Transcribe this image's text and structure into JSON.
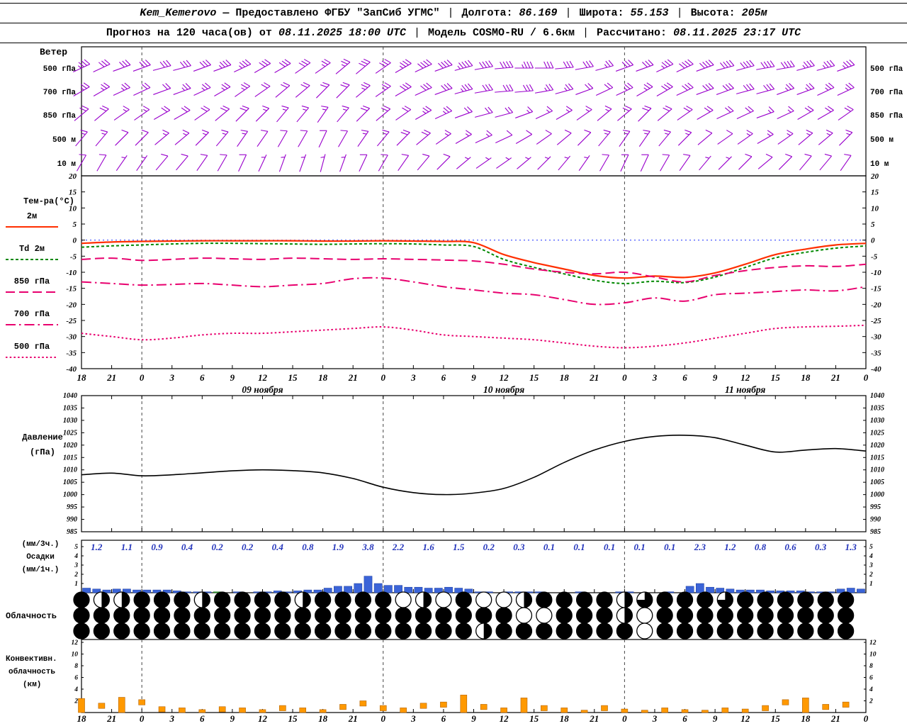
{
  "header": {
    "station": "Kem_Kemerovo",
    "provider": "— Предоставлено ФГБУ \"ЗапСиб УГМС\"",
    "sep": "|",
    "lon_label": "Долгота:",
    "lon": "86.169",
    "lat_label": "Широта:",
    "lat": "55.153",
    "alt_label": "Высота:",
    "alt": "205м",
    "forecast_prefix": "Прогноз на 120 часа(ов) от",
    "forecast_start": "08.11.2025 18:00 UTC",
    "model_label": "Модель",
    "model": "COSMO-RU / 6.6км",
    "calc_label": "Рассчитано:",
    "calc_time": "08.11.2025 23:17 UTC"
  },
  "labels": {
    "wind": "Ветер",
    "temp": "Тем-ра(°C)",
    "pressure1": "Давление",
    "pressure2": "(гПа)",
    "precip1": "(мм/3ч.)",
    "precip2": "Осадки",
    "precip3": "(мм/1ч.)",
    "cloud": "Облачность",
    "conv1": "Конвективн.",
    "conv2": "облачность",
    "conv3": "(км)"
  },
  "chart_data": {
    "type": "meteogram",
    "time": {
      "step_hours": 3,
      "span_hours": 78,
      "tick_labels": [
        "18",
        "21",
        "0",
        "3",
        "6",
        "9",
        "12",
        "15",
        "18",
        "21",
        "0",
        "3",
        "6",
        "9",
        "12",
        "15",
        "18",
        "21",
        "0",
        "3",
        "6",
        "9",
        "12",
        "15",
        "18",
        "21",
        "0"
      ],
      "date_labels": [
        {
          "text": "09 ноября",
          "hour": 18
        },
        {
          "text": "10 ноября",
          "hour": 42
        },
        {
          "text": "11 ноября",
          "hour": 66
        }
      ],
      "midnight_hours": [
        6,
        30,
        54
      ]
    },
    "wind": {
      "step_hours": 2,
      "levels": [
        {
          "name": "500 гПа",
          "speeds": [
            18,
            17,
            16,
            15,
            15,
            16,
            17,
            18,
            18,
            17,
            16,
            15,
            14,
            14,
            15,
            16,
            18,
            20,
            22,
            23,
            22,
            20,
            18,
            17,
            16,
            15,
            14,
            15,
            16,
            18,
            20,
            21,
            22,
            22,
            21,
            20,
            19,
            18,
            18
          ],
          "dirs": [
            245,
            245,
            250,
            250,
            255,
            255,
            250,
            250,
            245,
            240,
            240,
            235,
            235,
            230,
            230,
            235,
            240,
            245,
            250,
            255,
            260,
            265,
            270,
            270,
            265,
            260,
            255,
            250,
            250,
            245,
            245,
            250,
            255,
            255,
            260,
            260,
            255,
            255,
            250
          ]
        },
        {
          "name": "700 гПа",
          "speeds": [
            14,
            13,
            13,
            12,
            12,
            13,
            14,
            14,
            13,
            12,
            12,
            11,
            11,
            12,
            13,
            14,
            15,
            16,
            17,
            18,
            17,
            16,
            15,
            14,
            13,
            12,
            12,
            13,
            14,
            15,
            16,
            17,
            17,
            16,
            15,
            14,
            14,
            13,
            13
          ],
          "dirs": [
            240,
            240,
            245,
            245,
            250,
            250,
            245,
            240,
            235,
            235,
            230,
            230,
            225,
            225,
            230,
            235,
            240,
            245,
            250,
            255,
            260,
            265,
            265,
            260,
            255,
            250,
            245,
            245,
            240,
            240,
            245,
            250,
            250,
            255,
            255,
            250,
            250,
            245,
            245
          ]
        },
        {
          "name": "850 гПа",
          "speeds": [
            10,
            10,
            9,
            9,
            10,
            10,
            11,
            11,
            10,
            9,
            9,
            8,
            8,
            9,
            10,
            11,
            12,
            13,
            13,
            12,
            11,
            10,
            9,
            9,
            8,
            8,
            9,
            10,
            11,
            12,
            12,
            11,
            10,
            10,
            9,
            9,
            10,
            10,
            10
          ],
          "dirs": [
            230,
            230,
            235,
            235,
            240,
            240,
            235,
            230,
            225,
            225,
            220,
            220,
            215,
            220,
            225,
            230,
            235,
            240,
            245,
            250,
            255,
            255,
            250,
            245,
            240,
            235,
            230,
            230,
            225,
            230,
            235,
            240,
            245,
            245,
            250,
            245,
            240,
            240,
            235
          ]
        },
        {
          "name": "500 м",
          "speeds": [
            8,
            8,
            7,
            7,
            8,
            8,
            9,
            9,
            8,
            7,
            7,
            6,
            6,
            7,
            8,
            9,
            10,
            10,
            9,
            8,
            8,
            7,
            7,
            6,
            6,
            7,
            8,
            9,
            9,
            8,
            8,
            7,
            7,
            8,
            8,
            8,
            9,
            9,
            8
          ],
          "dirs": [
            220,
            220,
            225,
            225,
            230,
            230,
            225,
            220,
            215,
            215,
            210,
            210,
            205,
            210,
            215,
            220,
            225,
            230,
            235,
            240,
            245,
            245,
            240,
            235,
            230,
            225,
            220,
            215,
            215,
            220,
            225,
            230,
            235,
            235,
            240,
            235,
            230,
            230,
            225
          ]
        },
        {
          "name": "10 м",
          "speeds": [
            5,
            5,
            4,
            4,
            5,
            5,
            6,
            6,
            5,
            4,
            4,
            3,
            3,
            4,
            5,
            6,
            6,
            5,
            5,
            4,
            4,
            3,
            3,
            3,
            4,
            4,
            5,
            5,
            6,
            5,
            5,
            4,
            4,
            5,
            5,
            5,
            6,
            6,
            5
          ],
          "dirs": [
            210,
            210,
            215,
            215,
            220,
            220,
            215,
            210,
            205,
            205,
            200,
            200,
            195,
            200,
            205,
            210,
            215,
            220,
            225,
            230,
            235,
            235,
            230,
            225,
            220,
            215,
            210,
            205,
            205,
            210,
            215,
            220,
            225,
            225,
            230,
            225,
            220,
            220,
            215
          ]
        }
      ]
    },
    "temperature": {
      "ylim": [
        -40,
        20
      ],
      "ticks": [
        20,
        15,
        10,
        5,
        0,
        -5,
        -10,
        -15,
        -20,
        -25,
        -30,
        -35,
        -40
      ],
      "step_hours": 3,
      "series": [
        {
          "name": "2м",
          "color": "#ff2f00",
          "style": "solid",
          "values": [
            -1.0,
            -0.6,
            -0.4,
            -0.3,
            -0.2,
            -0.2,
            -0.2,
            -0.2,
            -0.3,
            -0.3,
            -0.2,
            -0.3,
            -0.4,
            -0.8,
            -4.5,
            -7.0,
            -9.0,
            -11.0,
            -11.8,
            -11.2,
            -11.6,
            -10.2,
            -7.5,
            -4.5,
            -2.8,
            -1.5,
            -1.0
          ]
        },
        {
          "name": "Td 2м",
          "color": "#008800",
          "style": "shortdash",
          "values": [
            -2.2,
            -1.8,
            -1.5,
            -1.2,
            -1.0,
            -1.0,
            -1.1,
            -1.2,
            -1.3,
            -1.2,
            -1.1,
            -1.2,
            -1.5,
            -2.0,
            -6.0,
            -8.5,
            -10.5,
            -12.5,
            -13.5,
            -12.8,
            -13.2,
            -11.5,
            -8.5,
            -5.5,
            -3.8,
            -2.5,
            -1.8
          ]
        },
        {
          "name": "850 гПа",
          "color": "#e8006e",
          "style": "dash",
          "values": [
            -6.0,
            -5.6,
            -6.3,
            -6.0,
            -5.6,
            -5.8,
            -6.0,
            -5.6,
            -5.8,
            -6.0,
            -5.8,
            -6.0,
            -6.2,
            -6.5,
            -7.5,
            -9.0,
            -10.0,
            -10.5,
            -10.0,
            -11.5,
            -13.0,
            -11.0,
            -9.5,
            -8.5,
            -8.0,
            -8.2,
            -7.5
          ]
        },
        {
          "name": "700 гПа",
          "color": "#e8006e",
          "style": "dashdot",
          "values": [
            -13.0,
            -13.5,
            -14.0,
            -13.8,
            -13.5,
            -14.0,
            -14.5,
            -14.0,
            -13.5,
            -12.0,
            -11.8,
            -13.0,
            -14.5,
            -15.5,
            -16.5,
            -17.0,
            -18.5,
            -20.0,
            -19.5,
            -18.0,
            -19.0,
            -17.0,
            -16.5,
            -16.0,
            -15.5,
            -15.8,
            -14.5
          ]
        },
        {
          "name": "500 гПа",
          "color": "#e8006e",
          "style": "dot",
          "values": [
            -29.0,
            -30.0,
            -31.0,
            -30.5,
            -29.5,
            -29.0,
            -29.0,
            -28.5,
            -28.0,
            -27.5,
            -27.0,
            -28.0,
            -29.5,
            -30.0,
            -30.5,
            -31.0,
            -32.0,
            -33.0,
            -33.5,
            -33.0,
            -32.0,
            -30.5,
            -29.0,
            -27.5,
            -27.0,
            -26.8,
            -26.5
          ]
        }
      ]
    },
    "pressure": {
      "ylim": [
        985,
        1040
      ],
      "ticks": [
        1040,
        1035,
        1030,
        1025,
        1020,
        1015,
        1010,
        1005,
        1000,
        995,
        990,
        985
      ],
      "step_hours": 3,
      "values": [
        1008.0,
        1008.7,
        1007.6,
        1008.0,
        1008.8,
        1009.6,
        1010.0,
        1009.7,
        1008.8,
        1006.5,
        1003.0,
        1000.8,
        1000.0,
        1000.6,
        1002.5,
        1007.0,
        1013.0,
        1018.0,
        1021.5,
        1023.5,
        1024.0,
        1023.0,
        1020.0,
        1017.2,
        1018.0,
        1018.6,
        1017.6
      ]
    },
    "precipitation": {
      "ylim": [
        0,
        5
      ],
      "ticks": [
        5,
        4,
        3,
        2,
        1
      ],
      "three_hour_values": [
        "1.2",
        "1.1",
        "0.9",
        "0.4",
        "0.2",
        "0.2",
        "0.4",
        "0.8",
        "1.9",
        "3.8",
        "2.2",
        "1.6",
        "1.5",
        "0.2",
        "0.3",
        "0.1",
        "0.1",
        "0.1",
        "0.1",
        "0.1",
        "2.3",
        "1.2",
        "0.8",
        "0.6",
        "0.3",
        "1.3"
      ],
      "hourly_values": [
        0.5,
        0.4,
        0.3,
        0.4,
        0.4,
        0.3,
        0.3,
        0.3,
        0.3,
        0.2,
        0.1,
        0.1,
        0.1,
        0.1,
        0.0,
        0.1,
        0.0,
        0.1,
        0.1,
        0.2,
        0.1,
        0.2,
        0.3,
        0.3,
        0.5,
        0.7,
        0.7,
        1.0,
        1.8,
        1.0,
        0.8,
        0.8,
        0.6,
        0.6,
        0.5,
        0.5,
        0.6,
        0.5,
        0.4,
        0.1,
        0.1,
        0.0,
        0.1,
        0.1,
        0.1,
        0.1,
        0.0,
        0.0,
        0.0,
        0.1,
        0.0,
        0.0,
        0.0,
        0.1,
        0.1,
        0.0,
        0.0,
        0.0,
        0.1,
        0.0,
        0.7,
        1.0,
        0.6,
        0.5,
        0.4,
        0.3,
        0.3,
        0.3,
        0.2,
        0.2,
        0.2,
        0.2,
        0.1,
        0.1,
        0.1,
        0.4,
        0.5,
        0.4
      ],
      "green_hours": [
        13
      ]
    },
    "cloudiness": {
      "step_hours": 2,
      "rows": [
        [
          1,
          0.5,
          0.5,
          1,
          1,
          1,
          0.5,
          1,
          1,
          1,
          1,
          0.5,
          1,
          1,
          1,
          1,
          0,
          0.5,
          0,
          1,
          0,
          0,
          0.5,
          1,
          1,
          1,
          1,
          0.5,
          0.75,
          1,
          1,
          1,
          0.75,
          1,
          1,
          1,
          1,
          1,
          1
        ],
        [
          1,
          1,
          1,
          1,
          1,
          1,
          1,
          1,
          1,
          1,
          1,
          1,
          1,
          1,
          1,
          1,
          1,
          1,
          1,
          1,
          1,
          1,
          0,
          0,
          1,
          1,
          1,
          0.5,
          0,
          1,
          1,
          1,
          1,
          1,
          1,
          1,
          1,
          1,
          1
        ],
        [
          1,
          1,
          1,
          1,
          1,
          1,
          1,
          1,
          1,
          1,
          1,
          1,
          1,
          1,
          1,
          1,
          1,
          1,
          1,
          1,
          0.5,
          1,
          1,
          1,
          1,
          1,
          1,
          1,
          0,
          1,
          1,
          1,
          1,
          1,
          1,
          1,
          1,
          1,
          1
        ]
      ]
    },
    "convective": {
      "ylim": [
        0,
        12
      ],
      "ticks": [
        12,
        10,
        8,
        6,
        4,
        2
      ],
      "step_hours": 2,
      "tops": [
        2.4,
        1.6,
        2.6,
        2.2,
        1.0,
        0.8,
        0.5,
        1.0,
        0.8,
        0.5,
        1.2,
        0.8,
        0.5,
        1.4,
        2.0,
        1.2,
        0.8,
        1.6,
        1.8,
        3.0,
        1.4,
        0.8,
        2.5,
        1.2,
        0.8,
        0.4,
        1.2,
        0.6,
        0.4,
        0.8,
        0.5,
        0.4,
        0.8,
        0.6,
        1.2,
        2.2,
        2.5,
        1.4,
        1.8
      ]
    },
    "colors": {
      "wind_barb": "#9900cc",
      "t2m": "#ff2f00",
      "td2m": "#008800",
      "t_pink": "#e8006e",
      "pressure": "#000000",
      "precip_bar": "#3b64d8",
      "precip_green": "#2e9e2e",
      "precip_text": "#2233bb",
      "cloud": "#000000",
      "convective": "#ff9900",
      "convective_edge": "#b36200",
      "grid": "#444444",
      "zero_line": "#3344ff"
    }
  }
}
